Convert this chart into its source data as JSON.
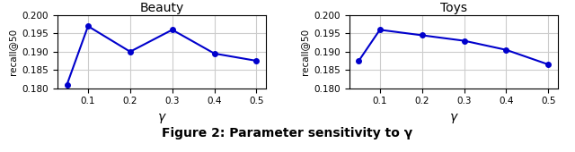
{
  "beauty": {
    "x": [
      0.05,
      0.1,
      0.2,
      0.3,
      0.4,
      0.5
    ],
    "y": [
      0.181,
      0.197,
      0.19,
      0.196,
      0.1895,
      0.1875
    ],
    "title": "Beauty",
    "xlabel": "γ",
    "ylabel": "recall@50",
    "ylim": [
      0.18,
      0.2
    ],
    "yticks": [
      0.18,
      0.185,
      0.19,
      0.195,
      0.2
    ]
  },
  "toys": {
    "x": [
      0.05,
      0.1,
      0.2,
      0.3,
      0.4,
      0.5
    ],
    "y": [
      0.1875,
      0.196,
      0.1945,
      0.193,
      0.1905,
      0.1865
    ],
    "title": "Toys",
    "xlabel": "γ",
    "ylabel": "recall@50",
    "ylim": [
      0.18,
      0.2
    ],
    "yticks": [
      0.18,
      0.185,
      0.19,
      0.195,
      0.2
    ]
  },
  "line_color": "#0000CC",
  "marker": "o",
  "markersize": 4,
  "linewidth": 1.5,
  "caption": "Figure 2: Parameter sensitivity to γ",
  "caption_fontsize": 10,
  "caption_fontweight": "bold",
  "background_color": "#ffffff",
  "grid_color": "#cccccc"
}
